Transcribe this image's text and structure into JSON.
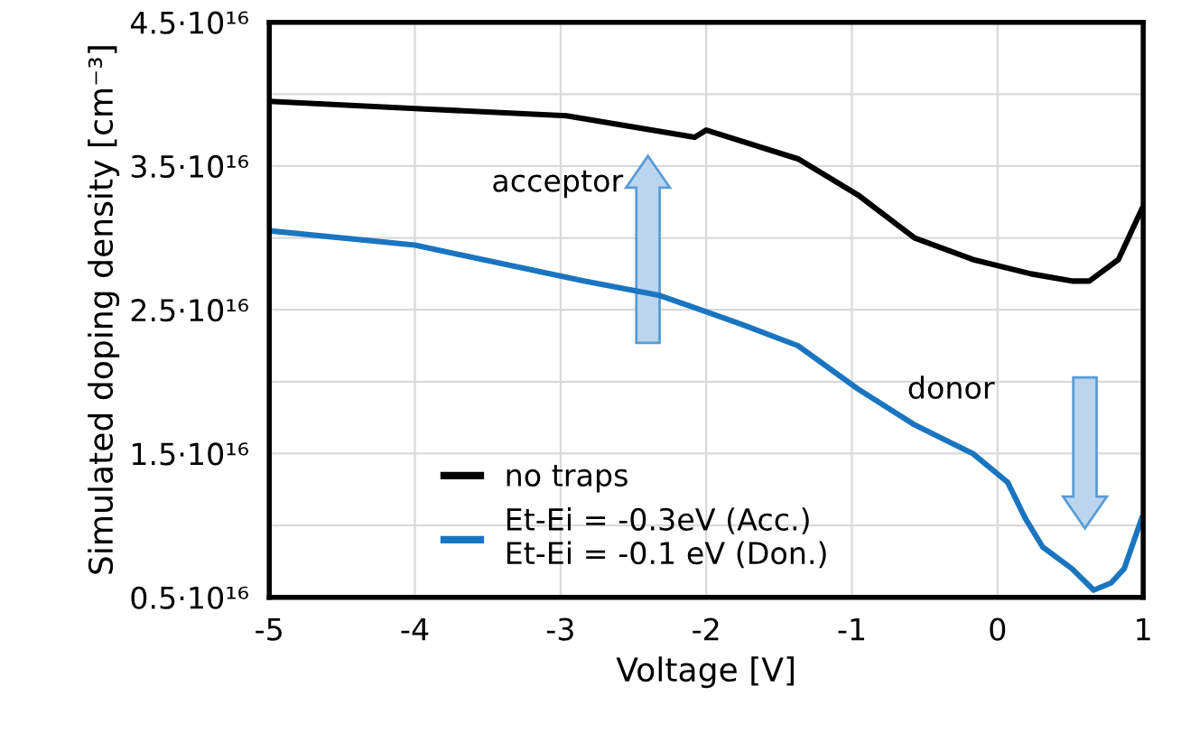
{
  "chart_data": {
    "type": "line",
    "xlabel": "Voltage [V]",
    "ylabel": "Simulated doping density [cm⁻³]",
    "xlim": [
      -5,
      1
    ],
    "xticks": [
      -5,
      -4,
      -3,
      -2,
      -1,
      0,
      1
    ],
    "ylim": [
      5000000000000000.0,
      4.5e+16
    ],
    "yticks": [
      {
        "value": 5000000000000000.0,
        "label": "0.5·10¹⁶"
      },
      {
        "value": 1e+16,
        "label": null
      },
      {
        "value": 1.5e+16,
        "label": "1.5·10¹⁶"
      },
      {
        "value": 2e+16,
        "label": null
      },
      {
        "value": 2.5e+16,
        "label": "2.5·10¹⁶"
      },
      {
        "value": 3e+16,
        "label": null
      },
      {
        "value": 3.5e+16,
        "label": "3.5·10¹⁶"
      },
      {
        "value": 4e+16,
        "label": null
      },
      {
        "value": 4.5e+16,
        "label": "4.5·10¹⁶"
      }
    ],
    "grid": true,
    "legend": "bottom",
    "marker": "none",
    "line_style": "solid",
    "annotations": [
      "acceptor",
      "donor"
    ],
    "series": [
      {
        "name": "no traps",
        "color": "#000000",
        "x": [
          -5,
          -4,
          -2.96,
          -2.08,
          -2.0,
          -1.37,
          -0.96,
          -0.57,
          -0.17,
          0.23,
          0.51,
          0.63,
          0.83,
          0.99
        ],
        "values": [
          3.95e+16,
          3.9e+16,
          3.85e+16,
          3.7e+16,
          3.75e+16,
          3.55e+16,
          3.3e+16,
          3e+16,
          2.85e+16,
          2.75e+16,
          2.7e+16,
          2.7e+16,
          2.85e+16,
          3.2e+16
        ]
      },
      {
        "name": "Et-Ei = -0.3eV (Acc.)\nEt-Ei = -0.1 eV (Don.)",
        "color": "#1a75c0",
        "x": [
          -5,
          -4.0,
          -2.84,
          -2.32,
          -1.76,
          -1.37,
          -0.96,
          -0.57,
          -0.17,
          0.07,
          0.19,
          0.31,
          0.51,
          0.66,
          0.78,
          0.87,
          0.99
        ],
        "values": [
          3.05e+16,
          2.95e+16,
          2.7e+16,
          2.6e+16,
          2.4e+16,
          2.25e+16,
          1.95e+16,
          1.7e+16,
          1.5e+16,
          1.3e+16,
          1.05e+16,
          8500000000000000.0,
          7000000000000000.0,
          5500000000000000.0,
          6000000000000000.0,
          7000000000000000.0,
          1.05e+16
        ]
      }
    ]
  }
}
